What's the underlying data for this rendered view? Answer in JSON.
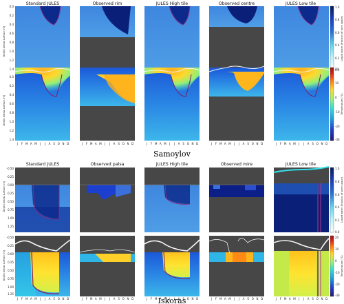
{
  "figure": {
    "sites": [
      "Samoylov",
      "Iskoras"
    ],
    "months": [
      "J",
      "F",
      "M",
      "A",
      "M",
      "J",
      "J",
      "A",
      "S",
      "O",
      "N",
      "D"
    ],
    "colorbar_colors": {
      "liquid": [
        "#081d58",
        "#1d3fbf",
        "#2b6fd6",
        "#3aa0e0",
        "#5fd3ea",
        "#bdf2f7",
        "#ffffff"
      ],
      "temperature": [
        "#2a1a6b",
        "#1f3fd1",
        "#1e9fe0",
        "#37e0d0",
        "#a8f06a",
        "#ffd72b",
        "#ff7a12",
        "#d8231a",
        "#9a0f16"
      ]
    },
    "nodata_color": "#474747"
  },
  "chart_data": [
    {
      "type": "heatmap",
      "site": "Samoylov",
      "panel_titles": [
        "Standard JULES",
        "Observed rim",
        "JULES High tile",
        "Observed centre",
        "JULES Low tile"
      ],
      "liquid_row": {
        "ylabel": "Depth below surface (m)",
        "yticks": [
          "0.0",
          "0.2",
          "0.4",
          "0.6",
          "0.8",
          "1.0",
          "1.2",
          "1.4"
        ],
        "colorbar_label": "Liquid water (fraction of pore space)",
        "colorbar_ticks": [
          "1.0",
          "0.8",
          "0.6",
          "0.4",
          "0.2",
          "0.0"
        ]
      },
      "temp_row": {
        "ylabel": "Depth below surface (m)",
        "yticks": [
          "0.0",
          "0.2",
          "0.4",
          "0.6",
          "0.8",
          "1.0",
          "1.2",
          "1.4"
        ],
        "colorbar_label": "Temperature (°C)",
        "colorbar_ticks": [
          "20",
          "10",
          "0",
          "-10",
          "-20",
          "-30"
        ]
      }
    },
    {
      "type": "heatmap",
      "site": "Iskoras",
      "panel_titles": [
        "Standard JULES",
        "Observed palsa",
        "JULES High tile",
        "Observed mire",
        "JULES Low tile"
      ],
      "liquid_row": {
        "ylabel": "Depth below surface (m)",
        "yticks": [
          "-0.50",
          "-0.25",
          "0.00",
          "0.25",
          "0.50",
          "0.75",
          "1.00",
          "1.25"
        ],
        "colorbar_label": "Liquid water (fraction of pore space)",
        "colorbar_ticks": [
          "1.0",
          "0.8",
          "0.6",
          "0.4",
          "0.2",
          "0.0"
        ]
      },
      "temp_row": {
        "ylabel": "Depth below surface (m)",
        "yticks": [
          "-0.50",
          "-0.25",
          "0.00",
          "0.25",
          "0.50",
          "0.75",
          "1.00",
          "1.25"
        ],
        "colorbar_label": "Temperature (°C)",
        "colorbar_ticks": [
          "20",
          "10",
          "0",
          "-10",
          "-20",
          "-30"
        ]
      }
    }
  ]
}
